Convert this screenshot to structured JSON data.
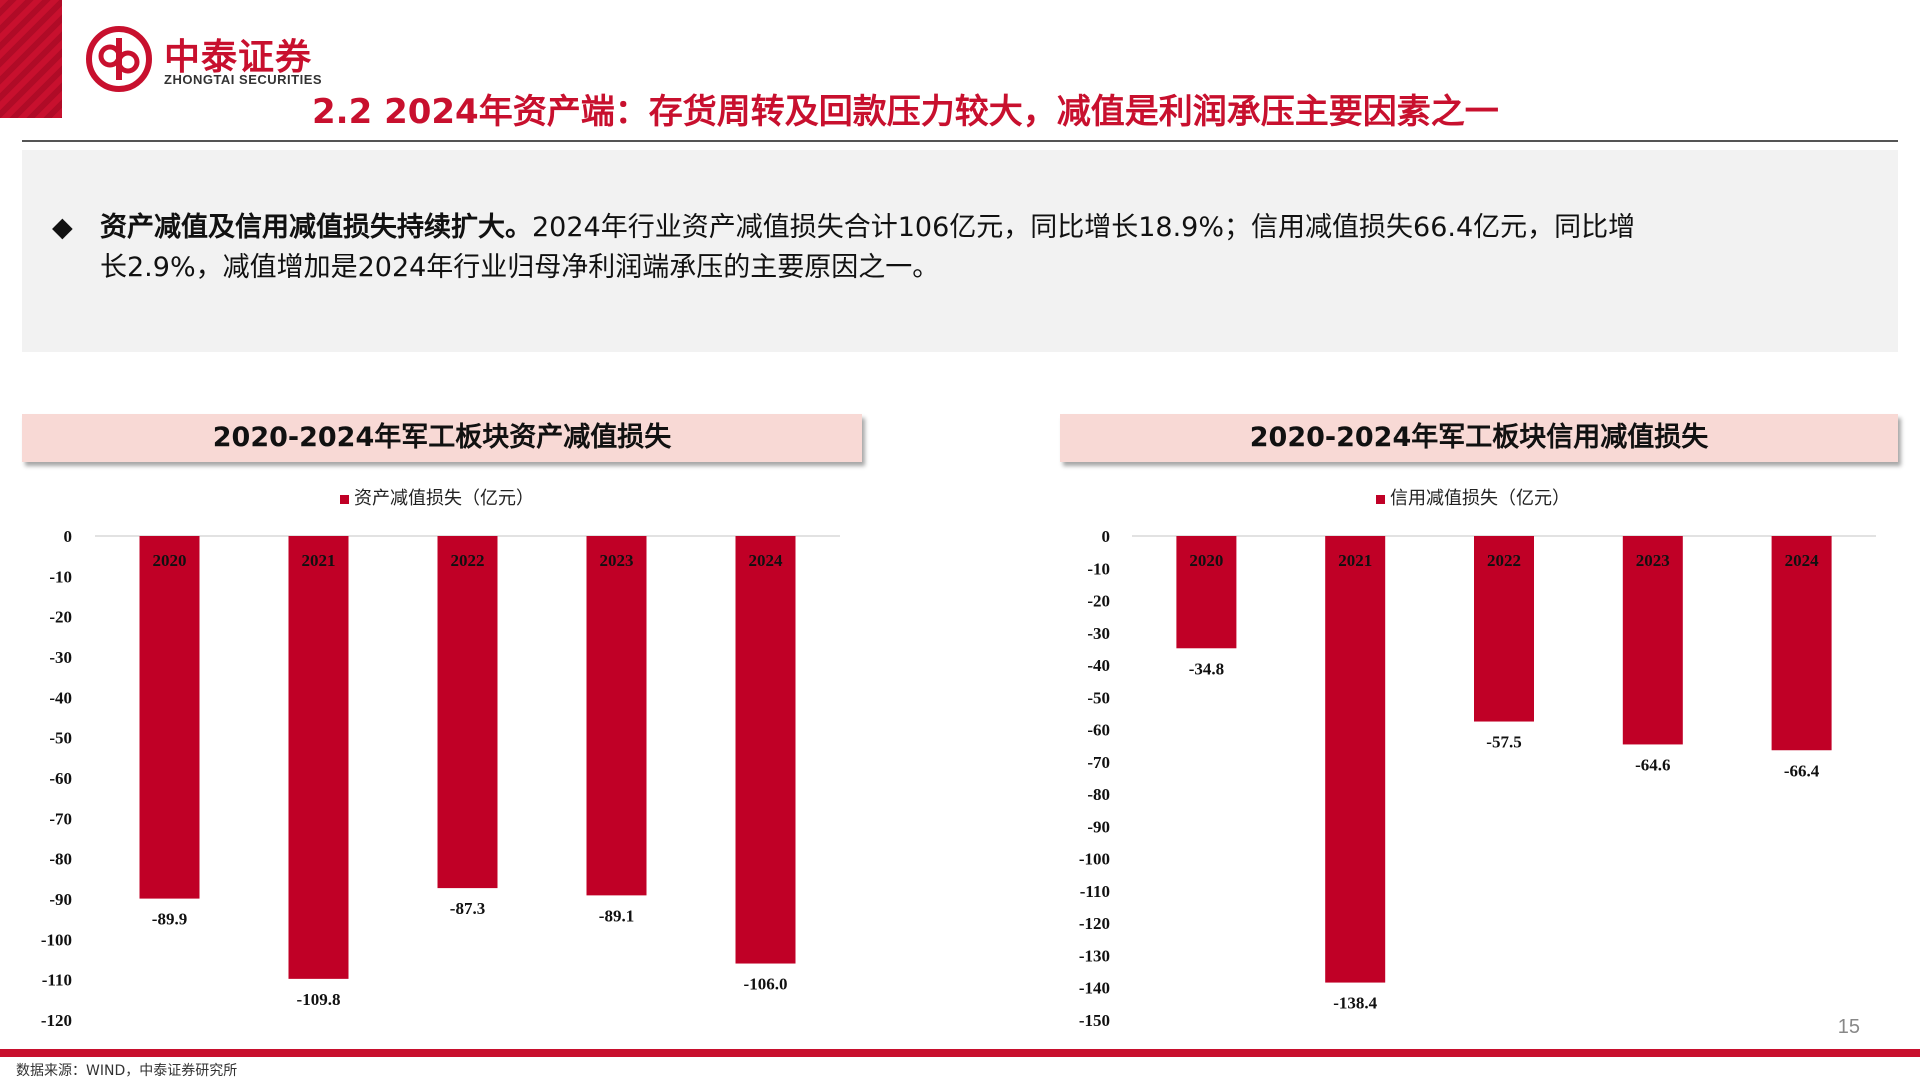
{
  "header": {
    "logo_cn": "中泰证券",
    "logo_en": "ZHONGTAI SECURITIES",
    "title": "2.2 2024年资产端：存货周转及回款压力较大，减值是利润承压主要因素之一"
  },
  "summary": {
    "bullet": "◆",
    "lead": "资产减值及信用减值损失持续扩大。",
    "line1_rest": "2024年行业资产减值损失合计106亿元，同比增长18.9%；信用减值损失66.4亿元，同比增",
    "line2": "长2.9%，减值增加是2024年行业归母净利润端承压的主要原因之一。"
  },
  "colors": {
    "accent": "#c8102e",
    "bar": "#c00026",
    "banner_bg": "#f8d9d5"
  },
  "chart_data": [
    {
      "type": "bar",
      "title": "2020-2024年军工板块资产减值损失",
      "categories": [
        "2020",
        "2021",
        "2022",
        "2023",
        "2024"
      ],
      "series": [
        {
          "name": "资产减值损失（亿元）",
          "values": [
            -89.9,
            -109.8,
            -87.3,
            -89.1,
            -106.0
          ]
        }
      ],
      "value_labels": [
        "-89.9",
        "-109.8",
        "-87.3",
        "-89.1",
        "-106.0"
      ],
      "ylim": [
        -120,
        0
      ],
      "yticks": [
        0,
        -10,
        -20,
        -30,
        -40,
        -50,
        -60,
        -70,
        -80,
        -90,
        -100,
        -110,
        -120
      ],
      "legend": "top-center",
      "grid": false
    },
    {
      "type": "bar",
      "title": "2020-2024年军工板块信用减值损失",
      "categories": [
        "2020",
        "2021",
        "2022",
        "2023",
        "2024"
      ],
      "series": [
        {
          "name": "信用减值损失（亿元）",
          "values": [
            -34.8,
            -138.4,
            -57.5,
            -64.6,
            -66.4
          ]
        }
      ],
      "value_labels": [
        "-34.8",
        "-138.4",
        "-57.5",
        "-64.6",
        "-66.4"
      ],
      "ylim": [
        -150,
        0
      ],
      "yticks": [
        0,
        -10,
        -20,
        -30,
        -40,
        -50,
        -60,
        -70,
        -80,
        -90,
        -100,
        -110,
        -120,
        -130,
        -140,
        -150
      ],
      "legend": "top-center",
      "grid": false
    }
  ],
  "footer": {
    "page_number": "15",
    "source": "数据来源：WIND，中泰证券研究所"
  }
}
